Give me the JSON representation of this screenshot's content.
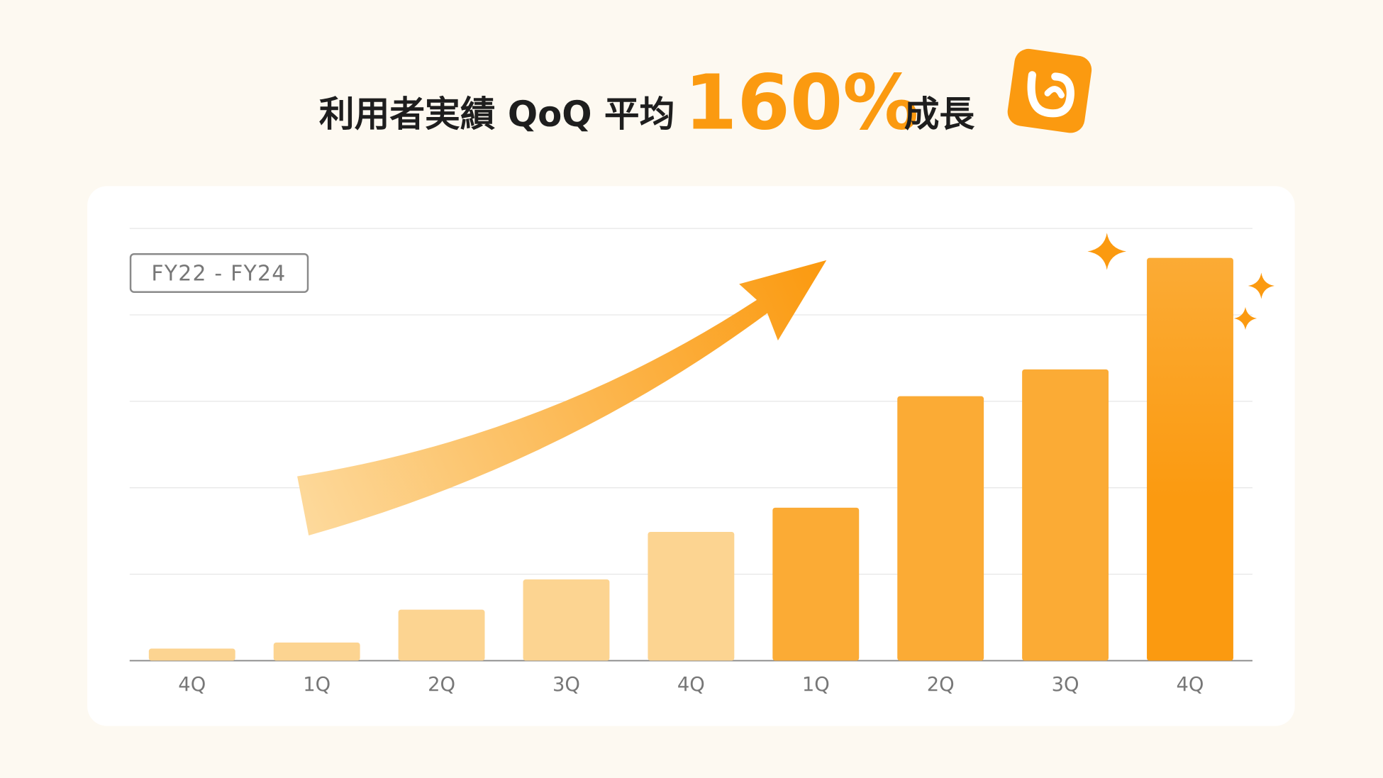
{
  "chart_data": {
    "type": "bar",
    "title": "利用者実績 QoQ 平均",
    "highlight": "160%",
    "title_suffix": "成長",
    "annotation": "FY22 - FY24",
    "categories": [
      "4Q",
      "1Q",
      "2Q",
      "3Q",
      "4Q",
      "1Q",
      "2Q",
      "3Q",
      "4Q"
    ],
    "values": [
      0.14,
      0.21,
      0.59,
      0.94,
      1.49,
      1.77,
      3.06,
      3.37,
      4.66
    ],
    "colors": [
      "#fcd491",
      "#fcd491",
      "#fcd491",
      "#fcd491",
      "#fcd491",
      "#fbab35",
      "#fbab35",
      "#fbab35",
      "#fb9a10"
    ],
    "ylim": [
      0,
      5
    ],
    "yticks": [
      0,
      1,
      2,
      3,
      4,
      5
    ],
    "grid": true
  }
}
